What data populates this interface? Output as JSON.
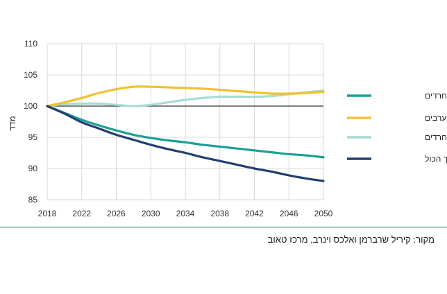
{
  "chart_data": {
    "type": "line",
    "ylabel": "מדד",
    "xlabel": "",
    "ylim": [
      85,
      110
    ],
    "yticks": [
      85,
      90,
      95,
      100,
      105,
      110
    ],
    "xlim": [
      2018,
      2050
    ],
    "xticks": [
      2018,
      2022,
      2026,
      2030,
      2034,
      2038,
      2042,
      2046,
      2050
    ],
    "reference_line": 100,
    "grid": true,
    "legend_position": "right",
    "x": [
      2018,
      2020,
      2022,
      2024,
      2026,
      2028,
      2030,
      2032,
      2034,
      2036,
      2038,
      2040,
      2042,
      2044,
      2046,
      2048,
      2050
    ],
    "series": [
      {
        "name": "יהודים לא-חרדים",
        "color": "#1aa094",
        "values": [
          100,
          98.9,
          97.8,
          96.9,
          96.1,
          95.4,
          94.9,
          94.5,
          94.2,
          93.8,
          93.5,
          93.2,
          92.9,
          92.6,
          92.3,
          92.1,
          91.8
        ]
      },
      {
        "name": "ערבים",
        "color": "#f0c131",
        "values": [
          100,
          100.6,
          101.3,
          102.1,
          102.7,
          103.1,
          103.1,
          103.0,
          102.9,
          102.8,
          102.6,
          102.4,
          102.2,
          102.0,
          102.0,
          102.1,
          102.3
        ]
      },
      {
        "name": "חרדים",
        "color": "#a9dbd4",
        "values": [
          100,
          100.3,
          100.4,
          100.4,
          100.2,
          100.0,
          100.2,
          100.6,
          101.0,
          101.3,
          101.5,
          101.5,
          101.5,
          101.6,
          101.9,
          102.2,
          102.5
        ]
      },
      {
        "name": "סך הכול",
        "color": "#233e6e",
        "values": [
          100,
          98.8,
          97.4,
          96.4,
          95.4,
          94.6,
          93.8,
          93.1,
          92.5,
          91.8,
          91.2,
          90.6,
          90.0,
          89.5,
          88.9,
          88.4,
          88.0
        ]
      }
    ]
  },
  "source_text": "מקור: קיריל שרברמן ואלכס וינרב, מרכז טאוב",
  "colors": {
    "grid": "#d9d9d9",
    "axis": "#333333",
    "divider": "#1f6f86"
  }
}
